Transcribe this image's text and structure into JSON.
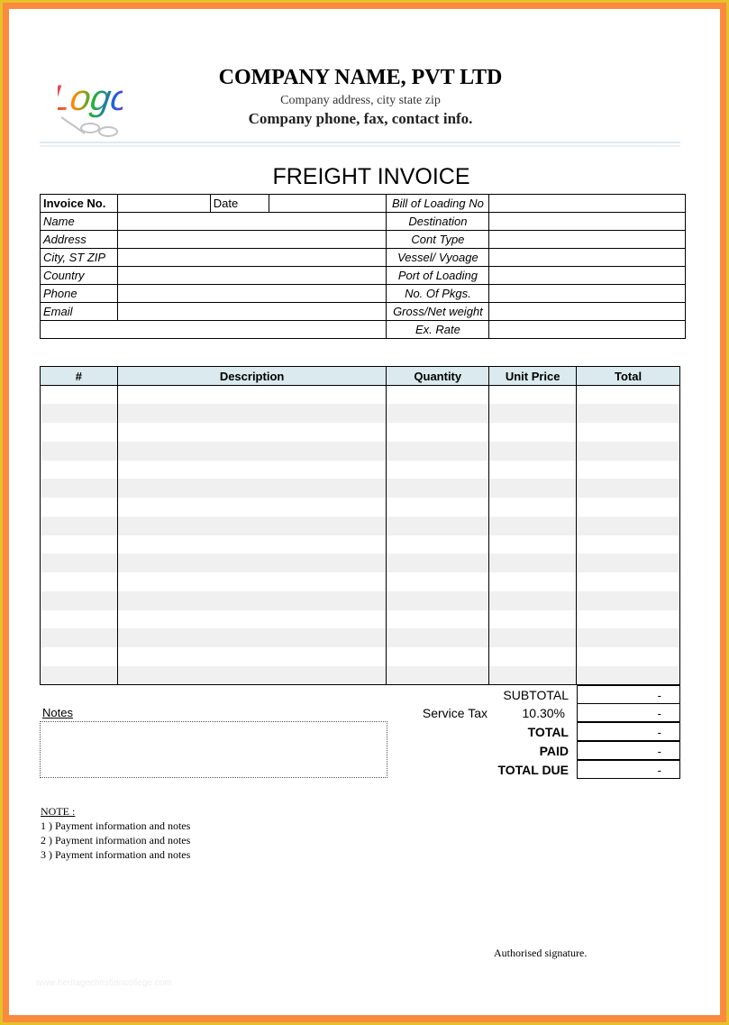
{
  "header": {
    "logo_text": "Logo",
    "company_name": "COMPANY NAME,  PVT LTD",
    "address": "Company address, city state zip",
    "contact": "Company phone, fax, contact info."
  },
  "title": "FREIGHT INVOICE",
  "info": {
    "invoice_no": "Invoice No.",
    "date": "Date",
    "left_labels": [
      "Name",
      "Address",
      "City, ST ZIP",
      "Country",
      "Phone",
      "Email"
    ],
    "right_labels": [
      "Bill of Loading No",
      "Destination",
      "Cont Type",
      "Vessel/ Vyoage",
      "Port of Loading",
      "No. Of Pkgs.",
      "Gross/Net weight",
      "Ex. Rate"
    ]
  },
  "items": {
    "columns": [
      "#",
      "Description",
      "Quantity",
      "Unit Price",
      "Total"
    ],
    "row_count": 16
  },
  "totals": {
    "subtotal_label": "SUBTOTAL",
    "service_tax_label": "Service Tax",
    "service_tax_rate": "10.30%",
    "total_label": "TOTAL",
    "paid_label": "PAID",
    "total_due_label": "TOTAL DUE",
    "values": [
      "-",
      "-",
      "-",
      "-",
      "-"
    ]
  },
  "notes_label": "Notes",
  "footer_notes": {
    "heading": "NOTE :",
    "lines": [
      "1 )  Payment information and notes",
      "2 ) Payment information and notes",
      "3 ) Payment information and notes"
    ]
  },
  "signature": "Authorised signature.",
  "watermark": "www.heritagechristiancollege.com"
}
